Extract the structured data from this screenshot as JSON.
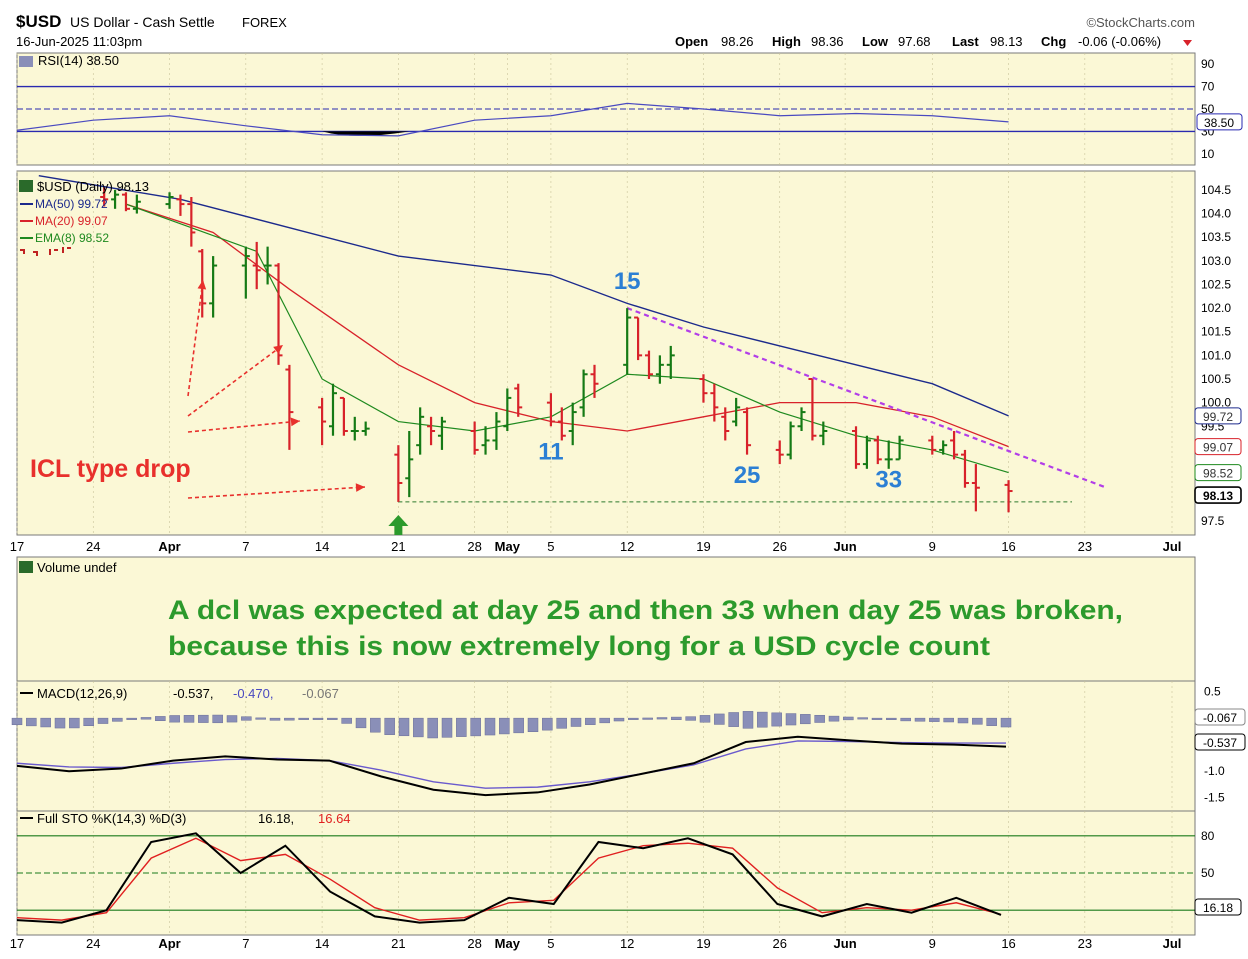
{
  "header": {
    "symbol": "$USD",
    "name": "US Dollar - Cash Settle",
    "exchange": "FOREX",
    "date": "16-Jun-2025 11:03pm",
    "brand": "©StockCharts.com",
    "open_label": "Open",
    "open": "98.26",
    "high_label": "High",
    "high": "98.36",
    "low_label": "Low",
    "low": "97.68",
    "last_label": "Last",
    "last": "98.13",
    "chg_label": "Chg",
    "chg": "-0.06 (-0.06%)"
  },
  "colors": {
    "panel_bg": "#fbf8d6",
    "price_up": "#157a15",
    "price_down": "#d8222a",
    "ma50": "#1c2a8c",
    "ma20": "#d8222a",
    "ema8": "#1f8a1f",
    "annotation_red": "#e8302c",
    "annotation_green": "#2c9a2c",
    "annotation_blue": "#2b7fd4",
    "trend_purple": "#b23ee8",
    "macd_hist": "#8a8fb8",
    "grid": "#c9c39a"
  },
  "chart_data": [
    {
      "type": "line",
      "panel": "rsi",
      "label": "RSI(14) 38.50",
      "current": "38.50",
      "y_ticks": [
        "90",
        "70",
        "50",
        "30",
        "10"
      ],
      "ylim": [
        0,
        100
      ],
      "reference_lines": [
        70,
        30,
        50
      ],
      "x": [
        "Mar 17",
        "Mar 24",
        "Mar 31",
        "Apr 7",
        "Apr 14",
        "Apr 21",
        "Apr 28",
        "May 5",
        "May 12",
        "May 19",
        "May 26",
        "Jun 2",
        "Jun 9",
        "Jun 16"
      ],
      "values": [
        31,
        40,
        44,
        35,
        27,
        26,
        40,
        44,
        55,
        50,
        44,
        46,
        44,
        38.5
      ]
    },
    {
      "type": "bar",
      "panel": "price",
      "label": "$USD (Daily) 98.13",
      "legend": [
        {
          "name": "MA(50) 99.72",
          "color": "#1c2a8c"
        },
        {
          "name": "MA(20) 99.07",
          "color": "#d8222a"
        },
        {
          "name": "EMA(8) 98.52",
          "color": "#1f8a1f"
        }
      ],
      "right_badges": [
        "99.72",
        "99.07",
        "98.52",
        "98.13"
      ],
      "y_ticks": [
        "104.5",
        "104.0",
        "103.5",
        "103.0",
        "102.5",
        "102.0",
        "101.5",
        "101.0",
        "100.5",
        "100.0",
        "99.5",
        "97.5"
      ],
      "ylim": [
        97.2,
        104.9
      ],
      "bars": [
        {
          "date": "Mar 25",
          "open": 104.35,
          "high": 104.55,
          "low": 104.15,
          "close": 104.3
        },
        {
          "date": "Mar 26",
          "open": 104.3,
          "high": 104.5,
          "low": 104.1,
          "close": 104.4
        },
        {
          "date": "Mar 27",
          "open": 104.4,
          "high": 104.45,
          "low": 104.05,
          "close": 104.1
        },
        {
          "date": "Mar 28",
          "open": 104.1,
          "high": 104.4,
          "low": 104.0,
          "close": 104.25
        },
        {
          "date": "Mar 31",
          "open": 104.2,
          "high": 104.45,
          "low": 104.1,
          "close": 104.35
        },
        {
          "date": "Apr 1",
          "open": 104.3,
          "high": 104.4,
          "low": 103.95,
          "close": 104.2
        },
        {
          "date": "Apr 2",
          "open": 104.2,
          "high": 104.35,
          "low": 103.3,
          "close": 103.6
        },
        {
          "date": "Apr 3",
          "open": 103.2,
          "high": 103.25,
          "low": 101.8,
          "close": 102.1
        },
        {
          "date": "Apr 4",
          "open": 102.1,
          "high": 103.1,
          "low": 101.8,
          "close": 102.9
        },
        {
          "date": "Apr 7",
          "open": 102.9,
          "high": 103.3,
          "low": 102.2,
          "close": 103.1
        },
        {
          "date": "Apr 8",
          "open": 102.9,
          "high": 103.4,
          "low": 102.4,
          "close": 102.8
        },
        {
          "date": "Apr 9",
          "open": 102.9,
          "high": 103.3,
          "low": 102.5,
          "close": 102.9
        },
        {
          "date": "Apr 10",
          "open": 102.9,
          "high": 102.95,
          "low": 100.8,
          "close": 101.0
        },
        {
          "date": "Apr 11",
          "open": 100.7,
          "high": 100.8,
          "low": 99.0,
          "close": 99.8
        },
        {
          "date": "Apr 14",
          "open": 99.9,
          "high": 100.1,
          "low": 99.1,
          "close": 99.6
        },
        {
          "date": "Apr 15",
          "open": 99.5,
          "high": 100.4,
          "low": 99.3,
          "close": 100.2
        },
        {
          "date": "Apr 16",
          "open": 100.1,
          "high": 100.1,
          "low": 99.3,
          "close": 99.4
        },
        {
          "date": "Apr 17",
          "open": 99.4,
          "high": 99.7,
          "low": 99.2,
          "close": 99.4
        },
        {
          "date": "Apr 18",
          "open": 99.4,
          "high": 99.6,
          "low": 99.3,
          "close": 99.45
        },
        {
          "date": "Apr 21",
          "open": 98.9,
          "high": 99.1,
          "low": 97.9,
          "close": 98.3
        },
        {
          "date": "Apr 22",
          "open": 98.4,
          "high": 99.4,
          "low": 98.0,
          "close": 98.8
        },
        {
          "date": "Apr 23",
          "open": 99.1,
          "high": 99.9,
          "low": 98.9,
          "close": 99.7
        },
        {
          "date": "Apr 24",
          "open": 99.5,
          "high": 99.7,
          "low": 99.1,
          "close": 99.4
        },
        {
          "date": "Apr 25",
          "open": 99.3,
          "high": 99.7,
          "low": 99.0,
          "close": 99.6
        },
        {
          "date": "Apr 28",
          "open": 99.4,
          "high": 99.6,
          "low": 98.9,
          "close": 99.0
        },
        {
          "date": "Apr 29",
          "open": 99.1,
          "high": 99.5,
          "low": 98.9,
          "close": 99.2
        },
        {
          "date": "Apr 30",
          "open": 99.2,
          "high": 99.8,
          "low": 99.0,
          "close": 99.6
        },
        {
          "date": "May 1",
          "open": 99.5,
          "high": 100.3,
          "low": 99.4,
          "close": 100.1
        },
        {
          "date": "May 2",
          "open": 100.3,
          "high": 100.4,
          "low": 99.7,
          "close": 99.9
        },
        {
          "date": "May 5",
          "open": 100.0,
          "high": 100.2,
          "low": 99.5,
          "close": 99.6
        },
        {
          "date": "May 6",
          "open": 99.6,
          "high": 99.9,
          "low": 99.2,
          "close": 99.3
        },
        {
          "date": "May 7",
          "open": 99.4,
          "high": 100.0,
          "low": 99.1,
          "close": 99.8
        },
        {
          "date": "May 8",
          "open": 99.9,
          "high": 100.7,
          "low": 99.7,
          "close": 100.6
        },
        {
          "date": "May 9",
          "open": 100.6,
          "high": 100.8,
          "low": 100.1,
          "close": 100.4
        },
        {
          "date": "May 12",
          "open": 100.8,
          "high": 102.0,
          "low": 100.6,
          "close": 101.8
        },
        {
          "date": "May 13",
          "open": 101.8,
          "high": 101.8,
          "low": 100.9,
          "close": 101.0
        },
        {
          "date": "May 14",
          "open": 101.0,
          "high": 101.1,
          "low": 100.5,
          "close": 100.6
        },
        {
          "date": "May 15",
          "open": 100.6,
          "high": 101.0,
          "low": 100.4,
          "close": 100.8
        },
        {
          "date": "May 16",
          "open": 100.8,
          "high": 101.2,
          "low": 100.5,
          "close": 101.0
        },
        {
          "date": "May 19",
          "open": 100.5,
          "high": 100.6,
          "low": 100.0,
          "close": 100.2
        },
        {
          "date": "May 20",
          "open": 100.2,
          "high": 100.4,
          "low": 99.6,
          "close": 99.9
        },
        {
          "date": "May 21",
          "open": 99.7,
          "high": 99.9,
          "low": 99.2,
          "close": 99.4
        },
        {
          "date": "May 22",
          "open": 99.6,
          "high": 100.1,
          "low": 99.5,
          "close": 99.9
        },
        {
          "date": "May 23",
          "open": 99.8,
          "high": 99.9,
          "low": 98.9,
          "close": 99.1
        },
        {
          "date": "May 26",
          "open": 99.0,
          "high": 99.2,
          "low": 98.7,
          "close": 98.9
        },
        {
          "date": "May 27",
          "open": 98.9,
          "high": 99.6,
          "low": 98.8,
          "close": 99.5
        },
        {
          "date": "May 28",
          "open": 99.5,
          "high": 99.9,
          "low": 99.4,
          "close": 99.8
        },
        {
          "date": "May 29",
          "open": 100.5,
          "high": 100.5,
          "low": 99.2,
          "close": 99.3
        },
        {
          "date": "May 30",
          "open": 99.3,
          "high": 99.6,
          "low": 99.1,
          "close": 99.4
        },
        {
          "date": "Jun 2",
          "open": 99.4,
          "high": 99.5,
          "low": 98.6,
          "close": 98.7
        },
        {
          "date": "Jun 3",
          "open": 98.7,
          "high": 99.3,
          "low": 98.6,
          "close": 99.2
        },
        {
          "date": "Jun 4",
          "open": 99.2,
          "high": 99.3,
          "low": 98.7,
          "close": 98.8
        },
        {
          "date": "Jun 5",
          "open": 98.8,
          "high": 99.2,
          "low": 98.6,
          "close": 98.8
        },
        {
          "date": "Jun 6",
          "open": 98.8,
          "high": 99.3,
          "low": 98.8,
          "close": 99.2
        },
        {
          "date": "Jun 9",
          "open": 99.2,
          "high": 99.3,
          "low": 98.9,
          "close": 99.0
        },
        {
          "date": "Jun 10",
          "open": 99.0,
          "high": 99.2,
          "low": 98.9,
          "close": 99.1
        },
        {
          "date": "Jun 11",
          "open": 99.2,
          "high": 99.4,
          "low": 98.8,
          "close": 98.9
        },
        {
          "date": "Jun 12",
          "open": 98.9,
          "high": 99.0,
          "low": 98.2,
          "close": 98.3
        },
        {
          "date": "Jun 13",
          "open": 98.3,
          "high": 98.7,
          "low": 97.7,
          "close": 98.2
        },
        {
          "date": "Jun 16",
          "open": 98.26,
          "high": 98.36,
          "low": 97.68,
          "close": 98.13
        }
      ],
      "ma50": {
        "x": [
          "Mar 19",
          "Apr 1",
          "Apr 21",
          "May 5",
          "May 12",
          "May 19",
          "May 26",
          "Jun 2",
          "Jun 9",
          "Jun 16"
        ],
        "values": [
          104.8,
          104.3,
          103.1,
          102.7,
          102.1,
          101.6,
          101.2,
          100.8,
          100.4,
          99.72
        ]
      },
      "ma20": {
        "x": [
          "Mar 27",
          "Apr 4",
          "Apr 11",
          "Apr 21",
          "Apr 28",
          "May 5",
          "May 12",
          "May 19",
          "May 26",
          "Jun 2",
          "Jun 9",
          "Jun 16"
        ],
        "values": [
          104.2,
          103.6,
          102.4,
          100.8,
          100.0,
          99.6,
          99.4,
          99.7,
          100.0,
          100.0,
          99.7,
          99.07
        ]
      },
      "ema8": {
        "x": [
          "Mar 27",
          "Apr 2",
          "Apr 8",
          "Apr 14",
          "Apr 21",
          "Apr 28",
          "May 5",
          "May 12",
          "May 19",
          "May 26",
          "Jun 2",
          "Jun 9",
          "Jun 16"
        ],
        "values": [
          104.2,
          103.7,
          103.2,
          100.5,
          99.6,
          99.4,
          99.7,
          100.6,
          100.5,
          99.8,
          99.3,
          99.0,
          98.52
        ]
      },
      "support_line": 97.9,
      "trendline": {
        "from": {
          "x": "May 12",
          "y": 102.0
        },
        "to": {
          "x": "Jun 25",
          "y": 98.2
        }
      },
      "cycle_labels": [
        {
          "text": "15",
          "x": "May 12",
          "y": 102.4
        },
        {
          "text": "11",
          "x": "May 5",
          "y": 98.8
        },
        {
          "text": "25",
          "x": "May 23",
          "y": 98.3
        },
        {
          "text": "33",
          "x": "Jun 5",
          "y": 98.2
        }
      ],
      "annotations": [
        {
          "text": "ICL type drop",
          "color": "#e8302c"
        }
      ]
    },
    {
      "type": "bar",
      "panel": "volume",
      "label": "Volume undef",
      "note": "A dcl was expected at day 25 and then 33 when day 25 was broken, because this is now extremely long for a USD cycle count"
    },
    {
      "type": "line",
      "panel": "macd",
      "label": "MACD(12,26,9)",
      "value_macd": "-0.537",
      "value_signal": "-0.470",
      "value_hist": "-0.067",
      "right_badges": [
        "-0.067",
        "-0.537"
      ],
      "y_ticks": [
        "0.5",
        "-1.0",
        "-1.5"
      ],
      "ylim": [
        -1.75,
        0.7
      ],
      "series": [
        {
          "name": "MACD",
          "values": [
            -0.9,
            -1.0,
            -0.95,
            -0.8,
            -0.72,
            -0.78,
            -0.8,
            -1.1,
            -1.35,
            -1.45,
            -1.4,
            -1.25,
            -1.05,
            -0.85,
            -0.45,
            -0.35,
            -0.42,
            -0.48,
            -0.5,
            -0.537
          ]
        },
        {
          "name": "Signal",
          "values": [
            -0.85,
            -0.92,
            -0.93,
            -0.85,
            -0.78,
            -0.76,
            -0.8,
            -0.98,
            -1.2,
            -1.32,
            -1.3,
            -1.2,
            -1.05,
            -0.88,
            -0.58,
            -0.43,
            -0.44,
            -0.46,
            -0.47,
            -0.47
          ]
        }
      ],
      "histogram": [
        -0.05,
        -0.08,
        -0.02,
        0.05,
        0.06,
        -0.02,
        0.0,
        -0.12,
        -0.15,
        -0.13,
        -0.1,
        -0.05,
        0.0,
        0.03,
        0.13,
        0.08,
        0.02,
        -0.02,
        -0.03,
        -0.067
      ]
    },
    {
      "type": "line",
      "panel": "stochastic",
      "label": "Full STO %K(14,3) %D(3)",
      "value_k": "16.18",
      "value_d": "16.64",
      "right_badges": [
        "16.18"
      ],
      "y_ticks": [
        "80",
        "50",
        "20"
      ],
      "ylim": [
        0,
        100
      ],
      "series": [
        {
          "name": "%K",
          "values": [
            12,
            10,
            20,
            75,
            82,
            50,
            72,
            35,
            15,
            10,
            12,
            30,
            25,
            75,
            70,
            78,
            65,
            25,
            15,
            25,
            18,
            30,
            16.18
          ]
        },
        {
          "name": "%D",
          "values": [
            14,
            12,
            18,
            62,
            78,
            60,
            65,
            45,
            22,
            12,
            14,
            26,
            28,
            62,
            72,
            74,
            70,
            38,
            18,
            22,
            20,
            26,
            16.64
          ]
        }
      ]
    }
  ],
  "x_axis": {
    "labels": [
      "17",
      "24",
      "Apr",
      "7",
      "14",
      "21",
      "28",
      "May",
      "5",
      "12",
      "19",
      "26",
      "Jun",
      "9",
      "16",
      "23",
      "Jul"
    ],
    "dates": [
      "Mar 17",
      "Mar 24",
      "Mar 31",
      "Apr 7",
      "Apr 14",
      "Apr 21",
      "Apr 28",
      "May 1",
      "May 5",
      "May 12",
      "May 19",
      "May 26",
      "Jun 1",
      "Jun 9",
      "Jun 16",
      "Jun 23",
      "Jul 1"
    ]
  }
}
